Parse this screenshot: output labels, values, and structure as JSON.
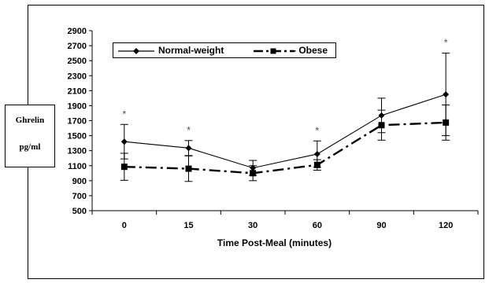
{
  "chart_data": {
    "type": "line",
    "title": "",
    "xlabel": "Time Post-Meal (minutes)",
    "ylabel_line1": "Ghrelin",
    "ylabel_line2": "pg/ml",
    "categories": [
      "0",
      "15",
      "30",
      "60",
      "90",
      "120"
    ],
    "ylim": [
      500,
      2900
    ],
    "yticks": [
      500,
      700,
      900,
      1100,
      1300,
      1500,
      1700,
      1900,
      2100,
      2300,
      2500,
      2700,
      2900
    ],
    "grid": false,
    "legend_position": "top-left",
    "annotation_symbol": "*",
    "annotated_categories": [
      "0",
      "15",
      "60",
      "120"
    ],
    "series": [
      {
        "name": "Normal-weight",
        "marker": "diamond",
        "line_style": "solid",
        "color": "#000000",
        "values": [
          1420,
          1335,
          1070,
          1255,
          1770,
          2050
        ],
        "error": [
          230,
          100,
          100,
          175,
          230,
          550
        ]
      },
      {
        "name": "Obese",
        "legend_label": "- Obese",
        "marker": "square",
        "line_style": "dash-dot",
        "color": "#000000",
        "values": [
          1085,
          1060,
          1000,
          1110,
          1640,
          1675
        ],
        "error": [
          180,
          170,
          100,
          70,
          200,
          235
        ]
      }
    ]
  }
}
